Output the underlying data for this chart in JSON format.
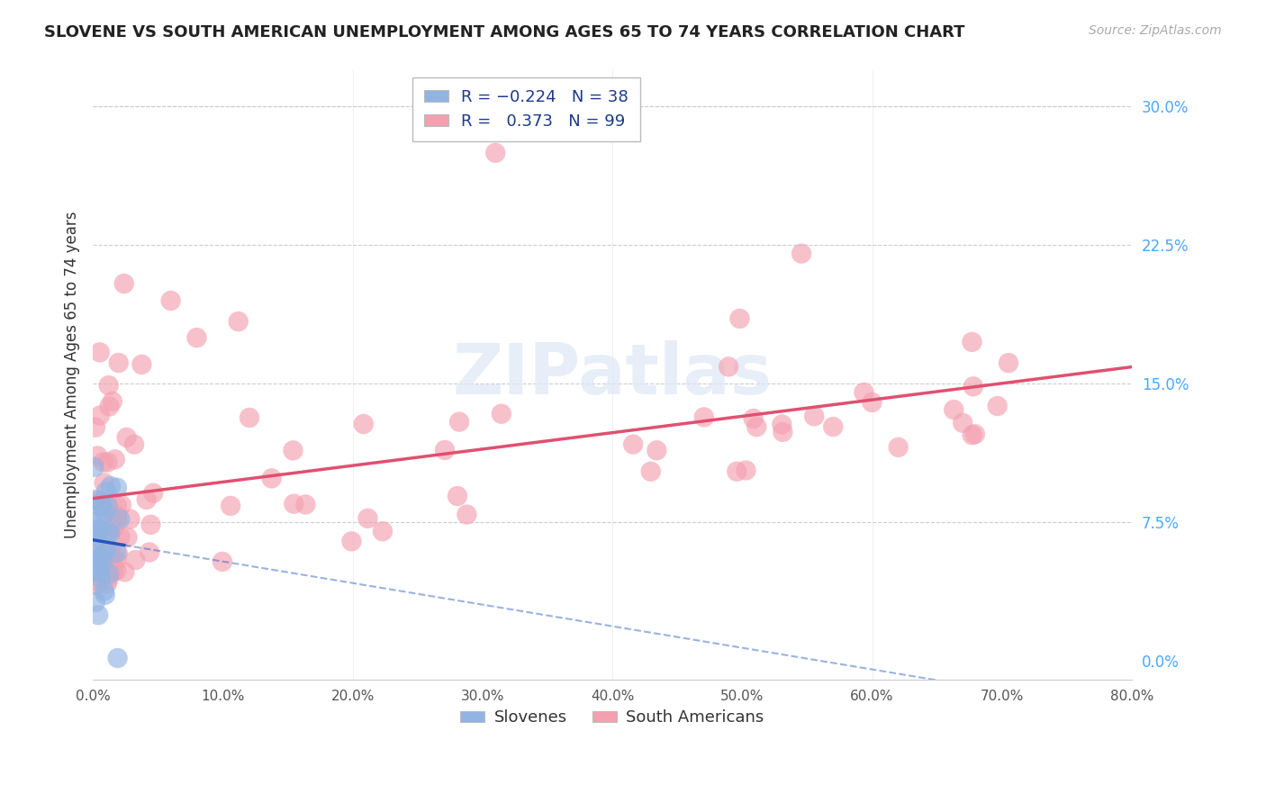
{
  "title": "SLOVENE VS SOUTH AMERICAN UNEMPLOYMENT AMONG AGES 65 TO 74 YEARS CORRELATION CHART",
  "source": "Source: ZipAtlas.com",
  "ylabel": "Unemployment Among Ages 65 to 74 years",
  "xlim": [
    0,
    0.8
  ],
  "ylim": [
    -0.01,
    0.32
  ],
  "xticks": [
    0.0,
    0.1,
    0.2,
    0.3,
    0.4,
    0.5,
    0.6,
    0.7,
    0.8
  ],
  "xticklabels": [
    "0.0%",
    "10.0%",
    "20.0%",
    "30.0%",
    "40.0%",
    "50.0%",
    "60.0%",
    "70.0%",
    "80.0%"
  ],
  "yticks_right": [
    0.0,
    0.075,
    0.15,
    0.225,
    0.3
  ],
  "ytick_labels_right": [
    "0.0%",
    "7.5%",
    "15.0%",
    "22.5%",
    "30.0%"
  ],
  "slovene_R": -0.224,
  "slovene_N": 38,
  "sa_R": 0.373,
  "sa_N": 99,
  "slovene_color": "#92b4e3",
  "sa_color": "#f4a0b0",
  "slovene_line_color": "#2255bb",
  "sa_line_color": "#e05070",
  "background_color": "#ffffff",
  "grid_color": "#cccccc"
}
